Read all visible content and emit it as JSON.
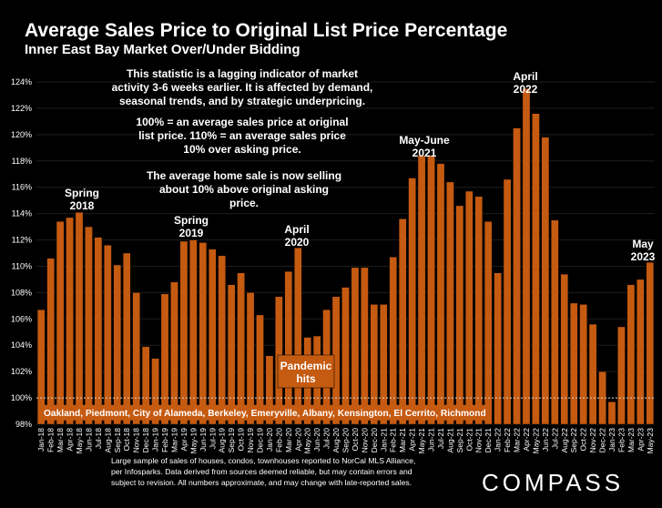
{
  "title": "Average Sales Price to Original List Price Percentage",
  "subtitle": "Inner East Bay Market Over/Under Bidding",
  "notes": {
    "lagging": "This statistic is a lagging indicator of market activity 3-6 weeks earlier. It is affected by demand, seasonal trends, and by strategic underpricing.",
    "definition": "100% = an average sales price at original list price. 110% = an average sales price 10% over asking price.",
    "current": "The average home sale is now selling about 10% above original asking price."
  },
  "annotations": {
    "spring_2018": [
      "Spring",
      "2018"
    ],
    "spring_2019": [
      "Spring",
      "2019"
    ],
    "april_2020": [
      "April",
      "2020"
    ],
    "may_june_2021": [
      "May-June",
      "2021"
    ],
    "april_2022": [
      "April",
      "2022"
    ],
    "may_2023": [
      "May",
      "2023"
    ],
    "pandemic": [
      "Pandemic",
      "hits"
    ]
  },
  "region_label": "Oakland, Piedmont, City of Alameda, Berkeley, Emeryville, Albany, Kensington, El Cerrito, Richmond",
  "footer": "Large sample of sales of houses, condos, townhouses reported to NorCal MLS Alliance, per Infosparks. Data derived from sources deemed reliable, but may contain errors and subject to revision. All numbers approximate, and may change with late-reported sales.",
  "logo": "COMPASS",
  "colors": {
    "background": "#000000",
    "bar": "#c55a11",
    "bar_outline": "#000000",
    "text": "#ffffff",
    "gridline": "#1e1e1e",
    "baseline": "#d9d9d9"
  },
  "chart_data": {
    "type": "bar",
    "ylim": [
      98,
      124
    ],
    "yticks": [
      98,
      100,
      102,
      104,
      106,
      108,
      110,
      112,
      114,
      116,
      118,
      120,
      122,
      124
    ],
    "ytick_suffix": "%",
    "reference_line": 100,
    "categories": [
      "Jan-18",
      "Feb-18",
      "Mar-18",
      "Apr-18",
      "May-18",
      "Jun-18",
      "Jul-18",
      "Aug-18",
      "Sep-18",
      "Oct-18",
      "Nov-18",
      "Dec-18",
      "Jan-19",
      "Feb-19",
      "Mar-19",
      "Apr-19",
      "May-19",
      "Jun-19",
      "Jul-19",
      "Aug-19",
      "Sep-19",
      "Oct-19",
      "Nov-19",
      "Dec-19",
      "Jan-20",
      "Feb-20",
      "Mar-20",
      "Apr-20",
      "May-20",
      "Jun-20",
      "Jul-20",
      "Aug-20",
      "Sep-20",
      "Oct-20",
      "Nov-20",
      "Dec-20",
      "Jan-21",
      "Feb-21",
      "Mar-21",
      "Apr-21",
      "May-21",
      "Jun-21",
      "Jul-21",
      "Aug-21",
      "Sep-21",
      "Oct-21",
      "Nov-21",
      "Dec-21",
      "Jan-22",
      "Feb-22",
      "Mar-22",
      "Apr-22",
      "May-22",
      "Jun-22",
      "Jul-22",
      "Aug-22",
      "Sep-22",
      "Oct-22",
      "Nov-22",
      "Dec-22",
      "Jan-23",
      "Feb-23",
      "Mar-23",
      "Apr-23",
      "May-23"
    ],
    "values": [
      106.7,
      110.6,
      113.4,
      113.7,
      114.1,
      113.0,
      112.2,
      111.6,
      110.1,
      111.0,
      108.0,
      103.9,
      103.0,
      107.9,
      108.8,
      111.9,
      112.0,
      111.8,
      111.3,
      110.8,
      108.6,
      109.5,
      108.0,
      106.3,
      103.2,
      107.7,
      109.6,
      111.4,
      104.6,
      104.7,
      106.7,
      107.7,
      108.4,
      109.9,
      109.9,
      107.1,
      107.1,
      110.7,
      113.6,
      116.7,
      118.4,
      118.4,
      117.8,
      116.4,
      114.6,
      115.7,
      115.3,
      113.4,
      109.5,
      116.6,
      120.5,
      123.5,
      121.6,
      119.8,
      113.5,
      109.4,
      107.2,
      107.1,
      105.6,
      102.0,
      99.7,
      105.4,
      108.6,
      109.0,
      110.3
    ]
  }
}
